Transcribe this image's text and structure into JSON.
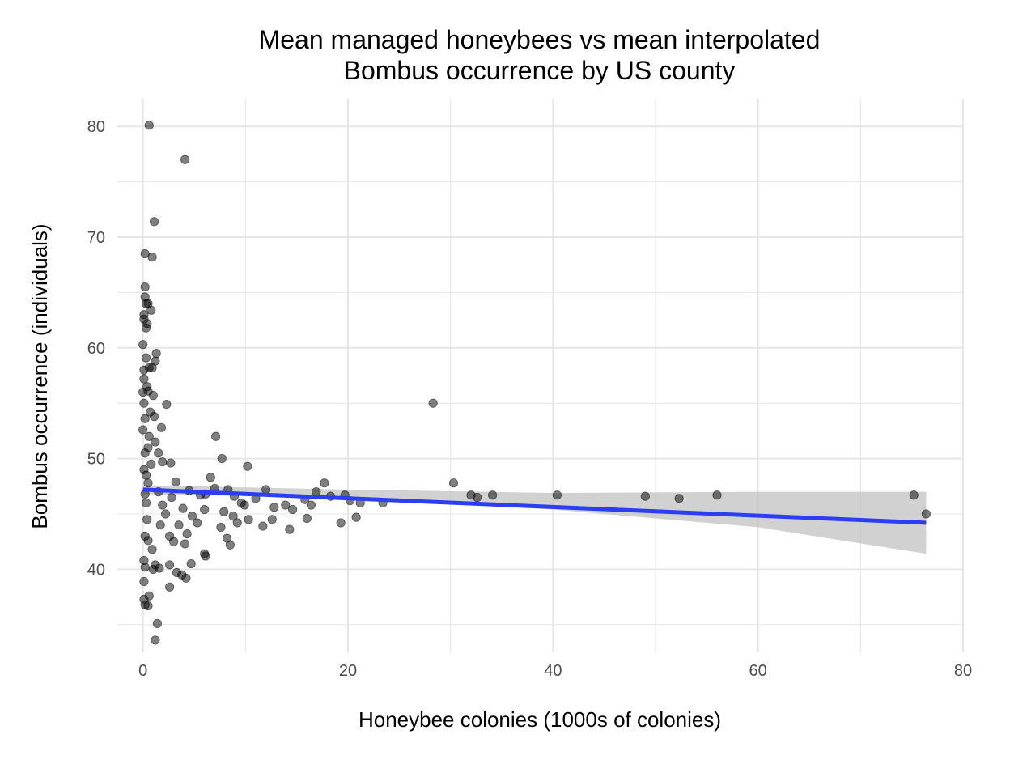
{
  "chart_data": {
    "type": "scatter",
    "title_lines": [
      "Mean managed honeybees vs mean interpolated",
      "Bombus occurrence by US county"
    ],
    "xlabel": "Honeybee colonies (1000s of colonies)",
    "ylabel": "Bombus occurrence (individuals)",
    "xlim": [
      -2.5,
      80
    ],
    "ylim": [
      32.5,
      82.5
    ],
    "x_ticks": [
      0,
      20,
      40,
      60,
      80
    ],
    "y_ticks": [
      40,
      50,
      60,
      70,
      80
    ],
    "grid": true,
    "legend": "none",
    "colors": {
      "points": "#000000",
      "trend_line": "#2c3ef5",
      "confidence_band": "#bdbdbd",
      "grid": "#e6e6e6"
    },
    "points": [
      [
        0.6,
        80.1
      ],
      [
        4.1,
        77.0
      ],
      [
        1.1,
        71.4
      ],
      [
        0.2,
        68.5
      ],
      [
        0.9,
        68.2
      ],
      [
        0.2,
        65.5
      ],
      [
        0.2,
        64.6
      ],
      [
        0.5,
        64.0
      ],
      [
        0.3,
        64.0
      ],
      [
        0.1,
        63.0
      ],
      [
        0.8,
        63.4
      ],
      [
        0.1,
        62.6
      ],
      [
        0.4,
        62.2
      ],
      [
        0.3,
        61.8
      ],
      [
        0.0,
        60.3
      ],
      [
        1.3,
        59.5
      ],
      [
        0.3,
        59.1
      ],
      [
        1.2,
        58.8
      ],
      [
        0.1,
        58.0
      ],
      [
        0.6,
        58.2
      ],
      [
        0.9,
        58.2
      ],
      [
        0.1,
        57.2
      ],
      [
        0.4,
        56.5
      ],
      [
        0.0,
        56.0
      ],
      [
        0.5,
        56.1
      ],
      [
        0.1,
        55.0
      ],
      [
        1.0,
        55.7
      ],
      [
        2.3,
        54.9
      ],
      [
        1.1,
        53.8
      ],
      [
        0.2,
        53.6
      ],
      [
        0.7,
        54.2
      ],
      [
        0.0,
        52.6
      ],
      [
        0.6,
        52.0
      ],
      [
        1.8,
        52.8
      ],
      [
        7.1,
        52.0
      ],
      [
        1.2,
        51.5
      ],
      [
        0.5,
        51.0
      ],
      [
        0.2,
        50.5
      ],
      [
        1.5,
        50.5
      ],
      [
        1.9,
        49.7
      ],
      [
        2.7,
        49.6
      ],
      [
        7.7,
        50.0
      ],
      [
        10.2,
        49.3
      ],
      [
        0.1,
        49.0
      ],
      [
        0.3,
        48.5
      ],
      [
        0.8,
        49.5
      ],
      [
        6.6,
        48.3
      ],
      [
        0.5,
        47.8
      ],
      [
        3.2,
        47.9
      ],
      [
        7.0,
        47.3
      ],
      [
        8.3,
        47.2
      ],
      [
        12.0,
        47.2
      ],
      [
        17.7,
        47.8
      ],
      [
        16.9,
        47.0
      ],
      [
        0.2,
        46.8
      ],
      [
        1.5,
        47.0
      ],
      [
        2.8,
        46.5
      ],
      [
        4.5,
        47.1
      ],
      [
        5.6,
        46.7
      ],
      [
        6.1,
        46.8
      ],
      [
        8.9,
        46.6
      ],
      [
        9.6,
        46.0
      ],
      [
        11.0,
        46.4
      ],
      [
        13.9,
        45.8
      ],
      [
        15.8,
        46.3
      ],
      [
        18.3,
        46.6
      ],
      [
        19.7,
        46.7
      ],
      [
        20.2,
        46.2
      ],
      [
        21.2,
        46.0
      ],
      [
        23.4,
        46.0
      ],
      [
        0.3,
        46.0
      ],
      [
        1.9,
        45.8
      ],
      [
        3.9,
        45.5
      ],
      [
        6.0,
        45.4
      ],
      [
        7.9,
        45.2
      ],
      [
        9.9,
        45.8
      ],
      [
        12.8,
        45.6
      ],
      [
        14.6,
        45.4
      ],
      [
        16.4,
        45.8
      ],
      [
        2.2,
        45.0
      ],
      [
        4.8,
        44.8
      ],
      [
        8.8,
        44.8
      ],
      [
        10.3,
        44.5
      ],
      [
        12.6,
        44.5
      ],
      [
        16.0,
        44.6
      ],
      [
        20.8,
        44.7
      ],
      [
        0.4,
        44.5
      ],
      [
        1.7,
        44.0
      ],
      [
        3.5,
        44.0
      ],
      [
        5.3,
        44.2
      ],
      [
        7.6,
        43.8
      ],
      [
        9.2,
        44.2
      ],
      [
        11.7,
        43.9
      ],
      [
        14.3,
        43.6
      ],
      [
        19.3,
        44.2
      ],
      [
        0.2,
        43.0
      ],
      [
        2.6,
        43.0
      ],
      [
        4.3,
        43.2
      ],
      [
        8.2,
        42.8
      ],
      [
        0.5,
        42.6
      ],
      [
        3.0,
        42.5
      ],
      [
        4.1,
        42.3
      ],
      [
        8.5,
        42.2
      ],
      [
        0.9,
        41.8
      ],
      [
        6.0,
        41.4
      ],
      [
        6.1,
        41.2
      ],
      [
        0.1,
        40.8
      ],
      [
        1.2,
        40.4
      ],
      [
        1.6,
        40.1
      ],
      [
        2.6,
        40.4
      ],
      [
        4.7,
        40.5
      ],
      [
        1.0,
        40.0
      ],
      [
        0.2,
        40.2
      ],
      [
        3.3,
        39.7
      ],
      [
        3.8,
        39.5
      ],
      [
        4.2,
        39.2
      ],
      [
        0.1,
        38.9
      ],
      [
        2.6,
        38.4
      ],
      [
        0.6,
        37.6
      ],
      [
        0.1,
        37.3
      ],
      [
        0.2,
        36.8
      ],
      [
        0.5,
        36.7
      ],
      [
        1.4,
        35.1
      ],
      [
        1.2,
        33.6
      ],
      [
        28.3,
        55.0
      ],
      [
        30.3,
        47.8
      ],
      [
        32.0,
        46.7
      ],
      [
        32.6,
        46.5
      ],
      [
        34.1,
        46.7
      ],
      [
        40.4,
        46.7
      ],
      [
        49.0,
        46.6
      ],
      [
        52.3,
        46.4
      ],
      [
        56.0,
        46.7
      ],
      [
        75.2,
        46.7
      ],
      [
        76.4,
        45.0
      ]
    ],
    "trend": {
      "x": [
        0,
        76.4
      ],
      "y": [
        47.2,
        44.2
      ]
    },
    "confidence_band": {
      "x": [
        0,
        20,
        40,
        60,
        76.4
      ],
      "lower": [
        46.8,
        46.4,
        45.4,
        43.8,
        41.4
      ],
      "upper": [
        47.6,
        47.2,
        46.9,
        47.0,
        47.0
      ]
    }
  }
}
